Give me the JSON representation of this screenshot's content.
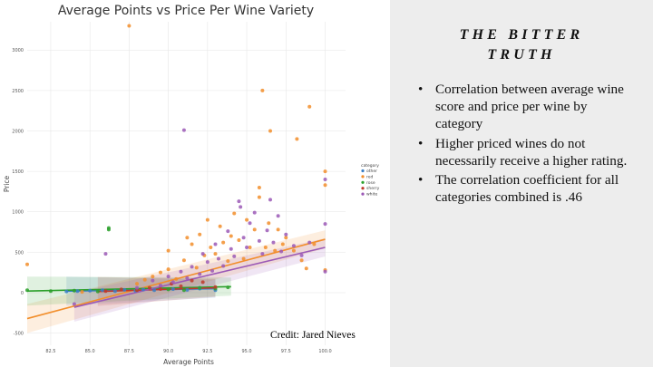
{
  "chart_data": {
    "type": "scatter",
    "title": "Average Points vs Price Per Wine Variety",
    "xlabel": "Average Points",
    "ylabel": "Price",
    "xlim": [
      81,
      101.3
    ],
    "ylim": [
      -650,
      3350
    ],
    "x_ticks": [
      "82.5",
      "85.0",
      "87.5",
      "90.0",
      "92.5",
      "95.0",
      "97.5",
      "100.0"
    ],
    "y_ticks": [
      "-500",
      "0",
      "500",
      "1000",
      "1500",
      "2000",
      "2500",
      "3000"
    ],
    "grid": true,
    "legend_title": "category",
    "legend_position": "right",
    "series": [
      {
        "name": "other",
        "color": "#3b7fc4",
        "points": [
          [
            83.5,
            15
          ],
          [
            84.2,
            20
          ],
          [
            85.0,
            25
          ],
          [
            85.8,
            30
          ],
          [
            86.6,
            20
          ],
          [
            87.2,
            35
          ],
          [
            87.9,
            25
          ],
          [
            88.4,
            40
          ],
          [
            89.1,
            30
          ],
          [
            90.3,
            45
          ],
          [
            91.2,
            35
          ],
          [
            92.0,
            50
          ],
          [
            93.0,
            30
          ]
        ],
        "trend": [
          [
            83.5,
            18
          ],
          [
            93.0,
            50
          ]
        ]
      },
      {
        "name": "red",
        "color": "#f28e2b",
        "points": [
          [
            81.0,
            350
          ],
          [
            84.5,
            10
          ],
          [
            87.5,
            3300
          ],
          [
            88.0,
            110
          ],
          [
            88.5,
            160
          ],
          [
            89.0,
            200
          ],
          [
            89.5,
            250
          ],
          [
            90.0,
            290
          ],
          [
            90.0,
            520
          ],
          [
            90.5,
            170
          ],
          [
            91.0,
            400
          ],
          [
            91.2,
            680
          ],
          [
            91.5,
            600
          ],
          [
            91.8,
            310
          ],
          [
            92.0,
            720
          ],
          [
            92.3,
            460
          ],
          [
            92.5,
            900
          ],
          [
            92.7,
            560
          ],
          [
            93.0,
            480
          ],
          [
            93.3,
            820
          ],
          [
            93.5,
            620
          ],
          [
            93.8,
            390
          ],
          [
            94.0,
            700
          ],
          [
            94.2,
            980
          ],
          [
            94.5,
            650
          ],
          [
            94.8,
            420
          ],
          [
            95.0,
            900
          ],
          [
            95.2,
            560
          ],
          [
            95.5,
            780
          ],
          [
            95.8,
            1300
          ],
          [
            95.8,
            1180
          ],
          [
            96.0,
            2500
          ],
          [
            96.2,
            560
          ],
          [
            96.4,
            860
          ],
          [
            96.5,
            2000
          ],
          [
            96.8,
            520
          ],
          [
            97.0,
            780
          ],
          [
            97.3,
            600
          ],
          [
            97.5,
            680
          ],
          [
            98.0,
            520
          ],
          [
            98.2,
            1900
          ],
          [
            98.5,
            400
          ],
          [
            98.8,
            300
          ],
          [
            99.0,
            2300
          ],
          [
            99.3,
            600
          ],
          [
            100.0,
            1500
          ],
          [
            100.0,
            1330
          ],
          [
            100.0,
            280
          ]
        ],
        "trend": [
          [
            81.0,
            -320
          ],
          [
            100.0,
            660
          ]
        ]
      },
      {
        "name": "rose",
        "color": "#2ca02c",
        "points": [
          [
            81.0,
            30
          ],
          [
            82.5,
            20
          ],
          [
            84.0,
            25
          ],
          [
            85.5,
            15
          ],
          [
            86.2,
            800
          ],
          [
            86.2,
            780
          ],
          [
            88.0,
            35
          ],
          [
            90.0,
            40
          ],
          [
            91.0,
            30
          ],
          [
            92.0,
            60
          ],
          [
            93.0,
            50
          ],
          [
            93.8,
            65
          ]
        ],
        "trend": [
          [
            81.0,
            20
          ],
          [
            94.0,
            75
          ]
        ]
      },
      {
        "name": "sherry",
        "color": "#c0392b",
        "points": [
          [
            86.0,
            20
          ],
          [
            87.0,
            40
          ],
          [
            88.0,
            30
          ],
          [
            88.8,
            60
          ],
          [
            89.5,
            45
          ],
          [
            90.2,
            110
          ],
          [
            90.8,
            80
          ],
          [
            91.5,
            150
          ],
          [
            92.2,
            130
          ],
          [
            93.0,
            70
          ]
        ],
        "trend": [
          [
            85.5,
            15
          ],
          [
            93.0,
            60
          ]
        ]
      },
      {
        "name": "white",
        "color": "#9b59b6",
        "points": [
          [
            84.0,
            -140
          ],
          [
            86.0,
            480
          ],
          [
            88.0,
            60
          ],
          [
            89.0,
            150
          ],
          [
            89.5,
            90
          ],
          [
            90.0,
            200
          ],
          [
            90.3,
            130
          ],
          [
            90.8,
            260
          ],
          [
            91.0,
            2010
          ],
          [
            91.2,
            180
          ],
          [
            91.5,
            320
          ],
          [
            92.0,
            230
          ],
          [
            92.2,
            480
          ],
          [
            92.5,
            380
          ],
          [
            92.8,
            270
          ],
          [
            93.0,
            600
          ],
          [
            93.2,
            420
          ],
          [
            93.5,
            330
          ],
          [
            93.8,
            760
          ],
          [
            94.0,
            540
          ],
          [
            94.2,
            450
          ],
          [
            94.5,
            1130
          ],
          [
            94.6,
            1060
          ],
          [
            94.8,
            680
          ],
          [
            95.0,
            560
          ],
          [
            95.2,
            860
          ],
          [
            95.5,
            990
          ],
          [
            95.8,
            640
          ],
          [
            96.0,
            480
          ],
          [
            96.3,
            770
          ],
          [
            96.5,
            1150
          ],
          [
            96.7,
            620
          ],
          [
            97.0,
            950
          ],
          [
            97.2,
            510
          ],
          [
            97.5,
            720
          ],
          [
            98.0,
            580
          ],
          [
            98.5,
            460
          ],
          [
            99.0,
            620
          ],
          [
            100.0,
            850
          ],
          [
            100.0,
            260
          ],
          [
            100.0,
            1400
          ]
        ],
        "trend": [
          [
            84.0,
            -180
          ],
          [
            100.0,
            560
          ]
        ]
      }
    ]
  },
  "credit": "Credit: Jared Nieves",
  "side_panel": {
    "title_line1": "THE BITTER",
    "title_line2": "TRUTH",
    "bullet_marker": "•",
    "bullets": [
      "Correlation between average wine score and price per wine by category",
      "Higher priced wines do not necessarily receive a higher rating.",
      "The correlation coefficient for all categories combined is .46"
    ]
  }
}
